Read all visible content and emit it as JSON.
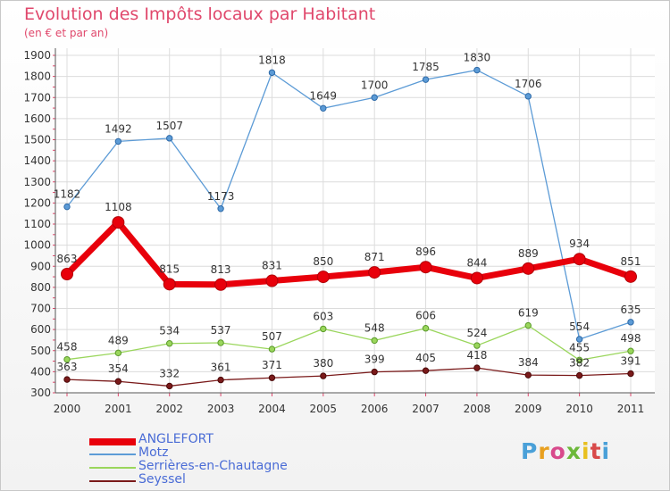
{
  "chart_data": {
    "type": "line",
    "title": "Evolution des Impôts locaux par Habitant",
    "subtitle": "(en € et par an)",
    "xlabel": "",
    "ylabel": "",
    "categories": [
      "2000",
      "2001",
      "2002",
      "2003",
      "2004",
      "2005",
      "2006",
      "2007",
      "2008",
      "2009",
      "2010",
      "2011"
    ],
    "ylim": [
      300,
      1900
    ],
    "yticks": [
      300,
      400,
      500,
      600,
      700,
      800,
      900,
      1000,
      1100,
      1200,
      1300,
      1400,
      1500,
      1600,
      1700,
      1800,
      1900
    ],
    "grid": true,
    "legend_position": "bottom-left",
    "series": [
      {
        "name": "ANGLEFORT",
        "color": "#e8000b",
        "values": [
          863,
          1108,
          815,
          813,
          831,
          850,
          871,
          896,
          844,
          889,
          934,
          851
        ]
      },
      {
        "name": "Motz",
        "color": "#5c9bd6",
        "values": [
          1182,
          1492,
          1507,
          1173,
          1818,
          1649,
          1700,
          1785,
          1830,
          1706,
          554,
          635
        ]
      },
      {
        "name": "Serrières-en-Chautagne",
        "color": "#9ad65c",
        "values": [
          458,
          489,
          534,
          537,
          507,
          603,
          548,
          606,
          524,
          619,
          455,
          498
        ]
      },
      {
        "name": "Seyssel",
        "color": "#7a1a1a",
        "values": [
          363,
          354,
          332,
          361,
          371,
          380,
          399,
          405,
          418,
          384,
          382,
          391
        ]
      }
    ]
  },
  "logo": {
    "text": "Proxiti"
  }
}
